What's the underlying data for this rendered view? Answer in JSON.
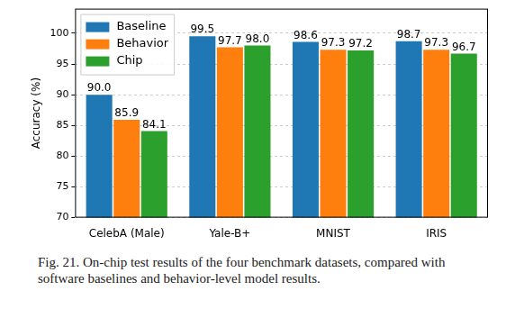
{
  "chart_data": {
    "type": "bar",
    "categories": [
      "CelebA (Male)",
      "Yale-B+",
      "MNIST",
      "IRIS"
    ],
    "y_label": "Accuracy (%)",
    "series": [
      {
        "name": "Baseline",
        "color": "#1f77b4",
        "values": [
          90.0,
          99.5,
          98.6,
          98.7
        ],
        "value_labels": [
          "90.0",
          "99.5",
          "98.6",
          "98.7"
        ]
      },
      {
        "name": "Behavior",
        "color": "#ff7f0e",
        "values": [
          85.9,
          97.7,
          97.3,
          97.3
        ],
        "value_labels": [
          "85.9",
          "97.7",
          "97.3",
          "97.3"
        ]
      },
      {
        "name": "Chip",
        "color": "#2ca02c",
        "values": [
          84.1,
          98.0,
          97.2,
          96.7
        ],
        "value_labels": [
          "84.1",
          "98.0",
          "97.2",
          "96.7"
        ]
      }
    ],
    "ylim": [
      70,
      104
    ],
    "yticks": [
      70,
      75,
      80,
      85,
      90,
      95,
      100
    ],
    "grid": true,
    "legend": "upper left",
    "data_labels": true
  },
  "caption": "Fig. 21. On-chip test results of the four benchmark datasets, compared with software baselines and behavior-level model results."
}
